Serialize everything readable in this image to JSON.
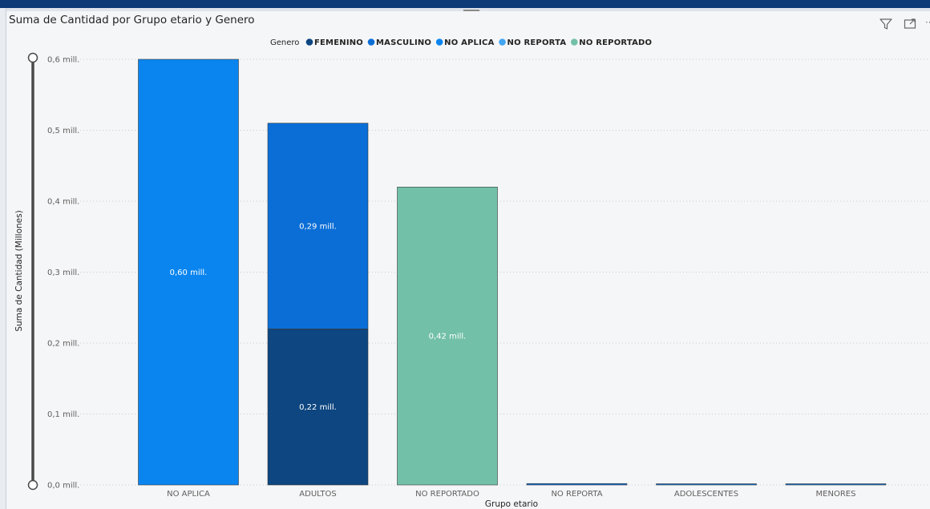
{
  "visual": {
    "title": "Suma de Cantidad por Grupo etario y Genero",
    "header_icons": [
      "filter-icon",
      "focus-mode-icon",
      "more-options-icon"
    ],
    "more_symbol": "⋯"
  },
  "colors": {
    "FEMENINO": "#0d4680",
    "MASCULINO": "#0b6ed6",
    "NO APLICA": "#0a85ef",
    "NO REPORTA": "#42a5f0",
    "NO REPORTADO": "#72c0a7"
  },
  "chart_data": {
    "type": "bar",
    "stacked": true,
    "title": "Suma de Cantidad por Grupo etario y Genero",
    "xlabel": "Grupo etario",
    "ylabel": "Suma de Cantidad (Millones)",
    "ylim": [
      0,
      0.6
    ],
    "yticks": [
      0,
      0.1,
      0.2,
      0.3,
      0.4,
      0.5,
      0.6
    ],
    "ytick_labels": [
      "0,0 mill.",
      "0,1 mill.",
      "0,2 mill.",
      "0,3 mill.",
      "0,4 mill.",
      "0,5 mill.",
      "0,6 mill."
    ],
    "grid": true,
    "legend_title": "Genero",
    "legend_position": "top-center",
    "categories": [
      "NO APLICA",
      "ADULTOS",
      "NO REPORTADO",
      "NO REPORTA",
      "ADOLESCENTES",
      "MENORES"
    ],
    "series": [
      {
        "name": "FEMENINO",
        "values": [
          0,
          0.22,
          0,
          0,
          0,
          0
        ],
        "labels": [
          "",
          "0,22 mill.",
          "",
          "",
          "",
          ""
        ]
      },
      {
        "name": "MASCULINO",
        "values": [
          0,
          0.29,
          0,
          0.002,
          0.0005,
          0.0003
        ],
        "labels": [
          "",
          "0,29 mill.",
          "",
          "",
          "",
          ""
        ]
      },
      {
        "name": "NO APLICA",
        "values": [
          0.6,
          0,
          0,
          0,
          0,
          0
        ],
        "labels": [
          "0,60 mill.",
          "",
          "",
          "",
          "",
          ""
        ]
      },
      {
        "name": "NO REPORTA",
        "values": [
          0,
          0,
          0,
          0,
          0,
          0
        ],
        "labels": [
          "",
          "",
          "",
          "",
          "",
          ""
        ]
      },
      {
        "name": "NO REPORTADO",
        "values": [
          0,
          0,
          0.42,
          0,
          0,
          0
        ],
        "labels": [
          "",
          "",
          "0,42 mill.",
          "",
          "",
          ""
        ]
      }
    ]
  }
}
